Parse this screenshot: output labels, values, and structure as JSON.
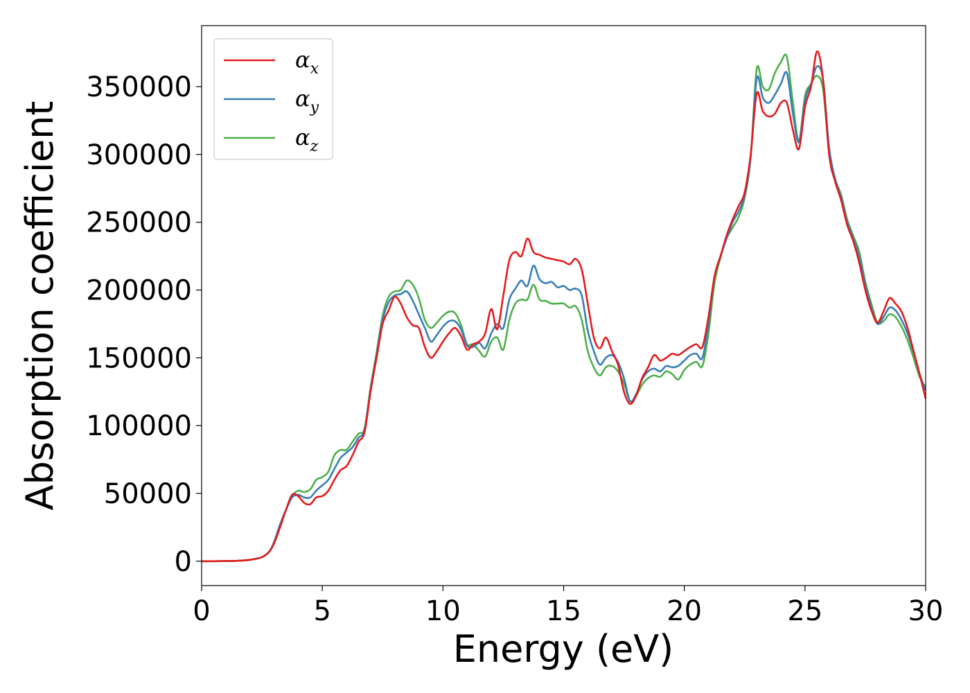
{
  "chart_data": {
    "type": "line",
    "title": "",
    "xlabel": "Energy (eV)",
    "ylabel": "Absorption coefficient",
    "xlim": [
      0,
      30
    ],
    "ylim": [
      -18000,
      395000
    ],
    "xticks": [
      0,
      5,
      10,
      15,
      20,
      25,
      30
    ],
    "yticks": [
      0,
      50000,
      100000,
      150000,
      200000,
      250000,
      300000,
      350000
    ],
    "grid": false,
    "legend": "upper-left",
    "x": [
      0,
      0.5,
      1,
      1.5,
      2,
      2.5,
      2.8,
      3,
      3.25,
      3.5,
      3.75,
      4,
      4.25,
      4.5,
      4.75,
      5,
      5.25,
      5.5,
      5.75,
      6,
      6.25,
      6.5,
      6.75,
      7,
      7.25,
      7.5,
      7.75,
      8,
      8.25,
      8.5,
      8.75,
      9,
      9.25,
      9.5,
      9.75,
      10,
      10.25,
      10.5,
      10.75,
      11,
      11.25,
      11.5,
      11.75,
      12,
      12.25,
      12.5,
      12.75,
      13,
      13.25,
      13.5,
      13.75,
      14,
      14.25,
      14.5,
      14.75,
      15,
      15.25,
      15.5,
      15.75,
      16,
      16.25,
      16.5,
      16.75,
      17,
      17.25,
      17.5,
      17.75,
      18,
      18.25,
      18.5,
      18.75,
      19,
      19.25,
      19.5,
      19.75,
      20,
      20.25,
      20.5,
      20.75,
      21,
      21.25,
      21.5,
      21.75,
      22,
      22.25,
      22.5,
      22.75,
      23,
      23.25,
      23.5,
      23.75,
      24,
      24.25,
      24.5,
      24.75,
      25,
      25.25,
      25.5,
      25.75,
      26,
      26.25,
      26.5,
      26.75,
      27,
      27.25,
      27.5,
      27.75,
      28,
      28.25,
      28.5,
      28.75,
      29,
      29.25,
      29.5,
      29.75,
      30
    ],
    "series": [
      {
        "name": "αx",
        "color": "#e41a1c",
        "values": [
          0,
          0,
          100,
          300,
          1000,
          3000,
          7000,
          13000,
          25000,
          38000,
          49000,
          48000,
          43000,
          42000,
          47000,
          48000,
          52000,
          60000,
          67000,
          70000,
          78000,
          88000,
          95000,
          125000,
          150000,
          175000,
          185000,
          195000,
          190000,
          180000,
          174000,
          172000,
          158000,
          150000,
          155000,
          162000,
          168000,
          172000,
          166000,
          156000,
          160000,
          162000,
          168000,
          186000,
          171000,
          196000,
          222000,
          228000,
          225000,
          238000,
          228000,
          226000,
          224000,
          223000,
          222000,
          221000,
          219000,
          223000,
          215000,
          190000,
          165000,
          157000,
          165000,
          155000,
          145000,
          125000,
          116000,
          122000,
          135000,
          143000,
          152000,
          148000,
          150000,
          153000,
          152000,
          155000,
          158000,
          160000,
          158000,
          180000,
          210000,
          225000,
          240000,
          252000,
          262000,
          272000,
          300000,
          345000,
          332000,
          328000,
          330000,
          338000,
          338000,
          318000,
          304000,
          335000,
          350000,
          376000,
          355000,
          300000,
          280000,
          266000,
          248000,
          236000,
          220000,
          200000,
          185000,
          176000,
          184000,
          194000,
          190000,
          184000,
          172000,
          155000,
          138000,
          120000
        ]
      },
      {
        "name": "αy",
        "color": "#377eb8",
        "values": [
          0,
          0,
          100,
          300,
          1000,
          3000,
          7000,
          14000,
          27000,
          38000,
          47000,
          49000,
          47000,
          47000,
          52000,
          56000,
          60000,
          68000,
          76000,
          80000,
          84000,
          91000,
          97000,
          127000,
          152000,
          178000,
          191000,
          196000,
          197000,
          199000,
          192000,
          182000,
          172000,
          162000,
          167000,
          173000,
          177000,
          177000,
          171000,
          159000,
          158000,
          161000,
          157000,
          168000,
          175000,
          172000,
          193000,
          201000,
          207000,
          203000,
          218000,
          208000,
          205000,
          206000,
          202000,
          203000,
          200000,
          201000,
          196000,
          170000,
          155000,
          145000,
          150000,
          152000,
          147000,
          135000,
          118000,
          123000,
          134000,
          140000,
          142000,
          140000,
          144000,
          143000,
          144000,
          148000,
          152000,
          153000,
          150000,
          175000,
          210000,
          225000,
          238000,
          250000,
          258000,
          270000,
          298000,
          356000,
          342000,
          338000,
          344000,
          352000,
          360000,
          330000,
          309000,
          340000,
          352000,
          365000,
          355000,
          305000,
          282000,
          268000,
          250000,
          238000,
          224000,
          204000,
          187000,
          175000,
          180000,
          187000,
          185000,
          178000,
          168000,
          154000,
          138000,
          126000
        ]
      },
      {
        "name": "αz",
        "color": "#4daf4a",
        "values": [
          0,
          0,
          100,
          300,
          1000,
          3000,
          7000,
          14000,
          27000,
          38000,
          48000,
          52000,
          51000,
          53000,
          60000,
          62000,
          66000,
          78000,
          82000,
          82000,
          88000,
          94000,
          98000,
          128000,
          154000,
          181000,
          195000,
          199000,
          200000,
          207000,
          204000,
          194000,
          178000,
          172000,
          176000,
          181000,
          184000,
          183000,
          174000,
          160000,
          160000,
          155000,
          151000,
          162000,
          165000,
          156000,
          178000,
          190000,
          193000,
          193000,
          204000,
          193000,
          192000,
          190000,
          190000,
          190000,
          187000,
          188000,
          178000,
          155000,
          143000,
          137000,
          143000,
          144000,
          140000,
          131000,
          118000,
          122000,
          130000,
          135000,
          137000,
          136000,
          140000,
          138000,
          134000,
          141000,
          145000,
          147000,
          144000,
          168000,
          205000,
          224000,
          238000,
          246000,
          254000,
          268000,
          298000,
          363000,
          350000,
          348000,
          360000,
          368000,
          372000,
          338000,
          310000,
          343000,
          352000,
          358000,
          348000,
          302000,
          282000,
          270000,
          252000,
          240000,
          228000,
          206000,
          190000,
          176000,
          177000,
          182000,
          180000,
          173000,
          163000,
          150000,
          136000,
          128000
        ]
      }
    ]
  }
}
